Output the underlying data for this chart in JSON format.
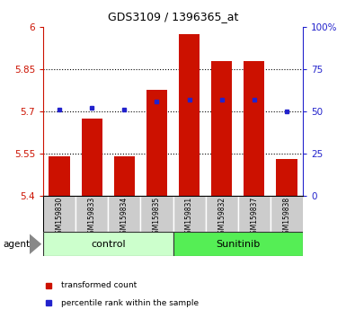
{
  "title": "GDS3109 / 1396365_at",
  "samples": [
    "GSM159830",
    "GSM159833",
    "GSM159834",
    "GSM159835",
    "GSM159831",
    "GSM159832",
    "GSM159837",
    "GSM159838"
  ],
  "red_values": [
    5.54,
    5.675,
    5.54,
    5.775,
    5.975,
    5.88,
    5.878,
    5.53
  ],
  "blue_values": [
    51,
    52,
    51,
    56,
    57,
    57,
    57,
    50
  ],
  "ymin": 5.4,
  "ymax": 6.0,
  "yticks": [
    5.4,
    5.55,
    5.7,
    5.85,
    6.0
  ],
  "ytick_labels": [
    "5.4",
    "5.55",
    "5.7",
    "5.85",
    "6"
  ],
  "y2ticks": [
    0,
    25,
    50,
    75,
    100
  ],
  "y2tick_labels": [
    "0",
    "25",
    "50",
    "75",
    "100%"
  ],
  "bar_color": "#cc1100",
  "dot_color": "#2222cc",
  "dotted_lines": [
    5.55,
    5.7,
    5.85
  ],
  "bar_width": 0.65,
  "control_color": "#ccffcc",
  "sunitinib_color": "#55ee55",
  "label_bg": "#cccccc",
  "group_border": "#333333"
}
